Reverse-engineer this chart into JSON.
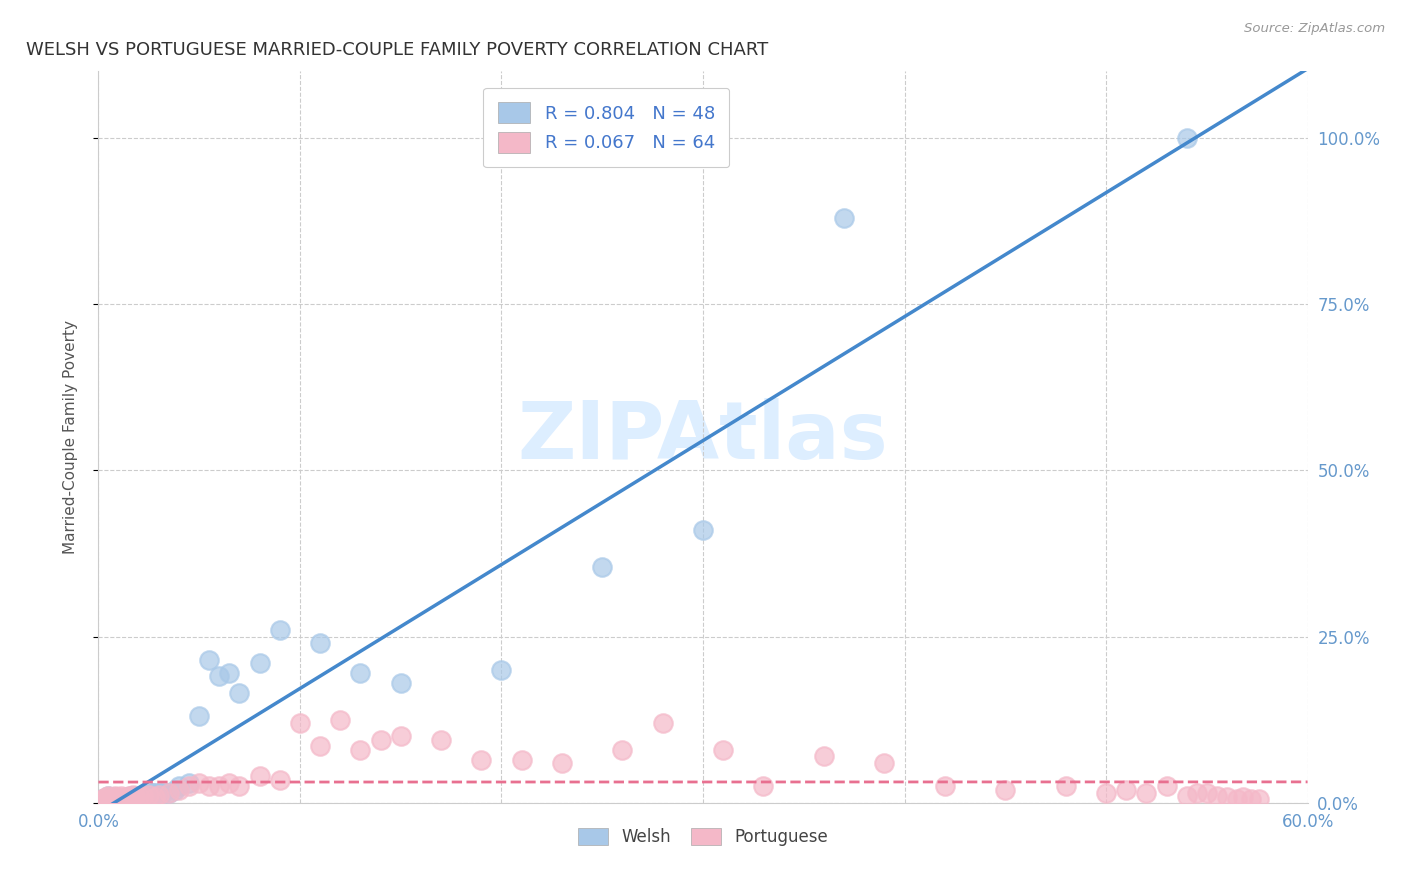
{
  "title": "WELSH VS PORTUGUESE MARRIED-COUPLE FAMILY POVERTY CORRELATION CHART",
  "source": "Source: ZipAtlas.com",
  "ylabel": "Married-Couple Family Poverty",
  "xlim": [
    0.0,
    0.6
  ],
  "ylim": [
    0.0,
    1.1
  ],
  "ytick_vals": [
    0.0,
    0.25,
    0.5,
    0.75,
    1.0
  ],
  "ytick_labels": [
    "0.0%",
    "25.0%",
    "50.0%",
    "75.0%",
    "100.0%"
  ],
  "xtick_vals": [
    0.0,
    0.1,
    0.2,
    0.3,
    0.4,
    0.5,
    0.6
  ],
  "xtick_labels": [
    "0.0%",
    "",
    "",
    "",
    "",
    "",
    "60.0%"
  ],
  "welsh_color": "#a8c8e8",
  "portuguese_color": "#f4b8c8",
  "welsh_line_color": "#4488cc",
  "portuguese_line_color": "#e87090",
  "R_welsh": 0.804,
  "N_welsh": 48,
  "R_portuguese": 0.067,
  "N_portuguese": 64,
  "legend_text_color": "#4477cc",
  "axis_text_color": "#6699cc",
  "watermark_color": "#ddeeff",
  "welsh_scatter_x": [
    0.002,
    0.003,
    0.004,
    0.005,
    0.006,
    0.007,
    0.008,
    0.009,
    0.01,
    0.011,
    0.012,
    0.013,
    0.014,
    0.015,
    0.016,
    0.017,
    0.018,
    0.019,
    0.02,
    0.021,
    0.022,
    0.023,
    0.024,
    0.025,
    0.026,
    0.027,
    0.028,
    0.03,
    0.032,
    0.035,
    0.038,
    0.04,
    0.045,
    0.05,
    0.055,
    0.06,
    0.065,
    0.07,
    0.08,
    0.09,
    0.11,
    0.13,
    0.15,
    0.2,
    0.25,
    0.3,
    0.37,
    0.54
  ],
  "welsh_scatter_y": [
    0.005,
    0.005,
    0.005,
    0.01,
    0.005,
    0.005,
    0.008,
    0.005,
    0.005,
    0.005,
    0.005,
    0.005,
    0.008,
    0.005,
    0.01,
    0.005,
    0.005,
    0.01,
    0.01,
    0.01,
    0.01,
    0.012,
    0.01,
    0.012,
    0.015,
    0.015,
    0.015,
    0.015,
    0.015,
    0.015,
    0.02,
    0.025,
    0.03,
    0.13,
    0.215,
    0.19,
    0.195,
    0.165,
    0.21,
    0.26,
    0.24,
    0.195,
    0.18,
    0.2,
    0.355,
    0.41,
    0.88,
    1.0
  ],
  "portuguese_scatter_x": [
    0.002,
    0.003,
    0.004,
    0.005,
    0.006,
    0.007,
    0.008,
    0.009,
    0.01,
    0.011,
    0.012,
    0.013,
    0.014,
    0.015,
    0.016,
    0.017,
    0.018,
    0.02,
    0.022,
    0.025,
    0.028,
    0.03,
    0.035,
    0.04,
    0.045,
    0.05,
    0.055,
    0.06,
    0.065,
    0.07,
    0.08,
    0.09,
    0.1,
    0.11,
    0.12,
    0.13,
    0.14,
    0.15,
    0.17,
    0.19,
    0.21,
    0.23,
    0.26,
    0.28,
    0.31,
    0.33,
    0.36,
    0.39,
    0.42,
    0.45,
    0.48,
    0.5,
    0.51,
    0.52,
    0.53,
    0.54,
    0.545,
    0.55,
    0.555,
    0.56,
    0.565,
    0.568,
    0.572,
    0.576
  ],
  "portuguese_scatter_y": [
    0.005,
    0.005,
    0.008,
    0.01,
    0.005,
    0.005,
    0.01,
    0.008,
    0.005,
    0.01,
    0.005,
    0.008,
    0.005,
    0.01,
    0.008,
    0.012,
    0.01,
    0.01,
    0.01,
    0.012,
    0.008,
    0.012,
    0.015,
    0.02,
    0.025,
    0.03,
    0.025,
    0.025,
    0.03,
    0.025,
    0.04,
    0.035,
    0.12,
    0.085,
    0.125,
    0.08,
    0.095,
    0.1,
    0.095,
    0.065,
    0.065,
    0.06,
    0.08,
    0.12,
    0.08,
    0.025,
    0.07,
    0.06,
    0.025,
    0.02,
    0.025,
    0.015,
    0.02,
    0.015,
    0.025,
    0.01,
    0.015,
    0.015,
    0.01,
    0.008,
    0.005,
    0.008,
    0.005,
    0.005
  ]
}
